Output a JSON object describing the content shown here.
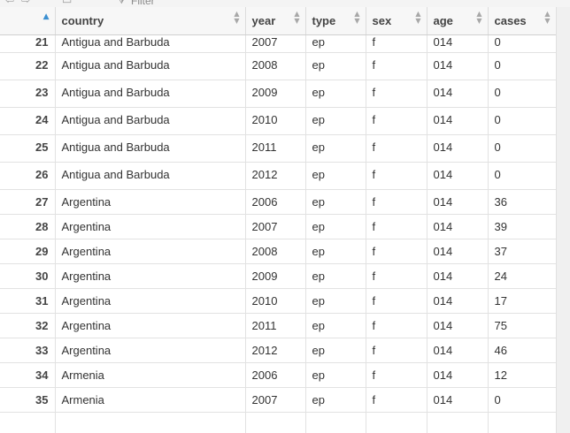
{
  "toolbar": {
    "filter_label": "Filter"
  },
  "columns": [
    {
      "key": "country",
      "label": "country",
      "sort": "asc"
    },
    {
      "key": "year",
      "label": "year",
      "sort": "none"
    },
    {
      "key": "type",
      "label": "type",
      "sort": "none"
    },
    {
      "key": "sex",
      "label": "sex",
      "sort": "none"
    },
    {
      "key": "age",
      "label": "age",
      "sort": "none"
    },
    {
      "key": "cases",
      "label": "cases",
      "sort": "none"
    }
  ],
  "rows": [
    {
      "idx": "21",
      "country": "Antigua and Barbuda",
      "year": "2007",
      "type": "ep",
      "sex": "f",
      "age": "014",
      "cases": "0"
    },
    {
      "idx": "22",
      "country": "Antigua and Barbuda",
      "year": "2008",
      "type": "ep",
      "sex": "f",
      "age": "014",
      "cases": "0"
    },
    {
      "idx": "23",
      "country": "Antigua and Barbuda",
      "year": "2009",
      "type": "ep",
      "sex": "f",
      "age": "014",
      "cases": "0"
    },
    {
      "idx": "24",
      "country": "Antigua and Barbuda",
      "year": "2010",
      "type": "ep",
      "sex": "f",
      "age": "014",
      "cases": "0"
    },
    {
      "idx": "25",
      "country": "Antigua and Barbuda",
      "year": "2011",
      "type": "ep",
      "sex": "f",
      "age": "014",
      "cases": "0"
    },
    {
      "idx": "26",
      "country": "Antigua and Barbuda",
      "year": "2012",
      "type": "ep",
      "sex": "f",
      "age": "014",
      "cases": "0"
    },
    {
      "idx": "27",
      "country": "Argentina",
      "year": "2006",
      "type": "ep",
      "sex": "f",
      "age": "014",
      "cases": "36"
    },
    {
      "idx": "28",
      "country": "Argentina",
      "year": "2007",
      "type": "ep",
      "sex": "f",
      "age": "014",
      "cases": "39"
    },
    {
      "idx": "29",
      "country": "Argentina",
      "year": "2008",
      "type": "ep",
      "sex": "f",
      "age": "014",
      "cases": "37"
    },
    {
      "idx": "30",
      "country": "Argentina",
      "year": "2009",
      "type": "ep",
      "sex": "f",
      "age": "014",
      "cases": "24"
    },
    {
      "idx": "31",
      "country": "Argentina",
      "year": "2010",
      "type": "ep",
      "sex": "f",
      "age": "014",
      "cases": "17"
    },
    {
      "idx": "32",
      "country": "Argentina",
      "year": "2011",
      "type": "ep",
      "sex": "f",
      "age": "014",
      "cases": "75"
    },
    {
      "idx": "33",
      "country": "Argentina",
      "year": "2012",
      "type": "ep",
      "sex": "f",
      "age": "014",
      "cases": "46"
    },
    {
      "idx": "34",
      "country": "Armenia",
      "year": "2006",
      "type": "ep",
      "sex": "f",
      "age": "014",
      "cases": "12"
    },
    {
      "idx": "35",
      "country": "Armenia",
      "year": "2007",
      "type": "ep",
      "sex": "f",
      "age": "014",
      "cases": "0"
    }
  ]
}
